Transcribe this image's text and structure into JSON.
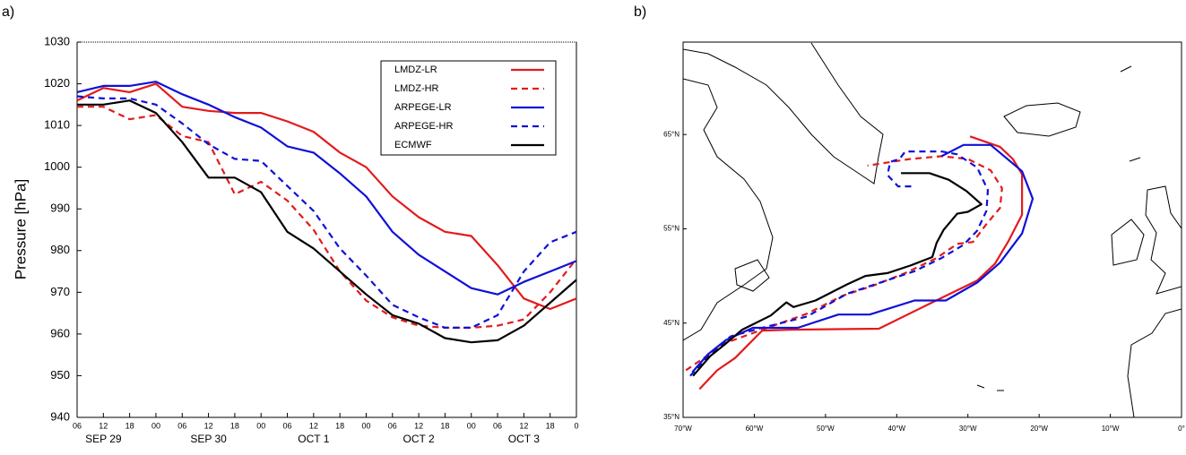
{
  "chart_data": [
    {
      "type": "line",
      "panel_label": "a)",
      "ylabel": "Pressure [hPa]",
      "x": [
        6,
        12,
        18,
        24,
        30,
        36,
        42,
        48,
        54,
        60,
        66,
        72,
        78,
        84,
        90,
        96,
        102,
        108,
        114,
        120
      ],
      "xlim": [
        6,
        120
      ],
      "xticks": [
        {
          "value": 6,
          "label": "06"
        },
        {
          "value": 12,
          "label": "12"
        },
        {
          "value": 18,
          "label": "18"
        },
        {
          "value": 24,
          "label": "00"
        },
        {
          "value": 30,
          "label": "06"
        },
        {
          "value": 36,
          "label": "12"
        },
        {
          "value": 42,
          "label": "18"
        },
        {
          "value": 48,
          "label": "00"
        },
        {
          "value": 54,
          "label": "06"
        },
        {
          "value": 60,
          "label": "12"
        },
        {
          "value": 66,
          "label": "18"
        },
        {
          "value": 72,
          "label": "00"
        },
        {
          "value": 78,
          "label": "06"
        },
        {
          "value": 84,
          "label": "12"
        },
        {
          "value": 90,
          "label": "18"
        },
        {
          "value": 96,
          "label": "00"
        },
        {
          "value": 102,
          "label": "06"
        },
        {
          "value": 108,
          "label": "12"
        },
        {
          "value": 114,
          "label": "18"
        },
        {
          "value": 120,
          "label": "0"
        }
      ],
      "xdates": [
        {
          "value": 12,
          "label": "SEP 29"
        },
        {
          "value": 36,
          "label": "SEP 30"
        },
        {
          "value": 60,
          "label": "OCT 1"
        },
        {
          "value": 84,
          "label": "OCT 2"
        },
        {
          "value": 108,
          "label": "OCT 3"
        }
      ],
      "ylim": [
        940,
        1030
      ],
      "yticks": [
        940,
        950,
        960,
        970,
        980,
        990,
        1000,
        1010,
        1020,
        1030
      ],
      "series": [
        {
          "name": "LMDZ-LR",
          "color": "#e31a1c",
          "dash": false,
          "values": [
            1016,
            1019,
            1018,
            1020,
            1014.5,
            1013.5,
            1013,
            1013,
            1011,
            1008.5,
            1003.5,
            1000,
            993,
            988,
            984.5,
            983.5,
            976.5,
            968.5,
            966,
            968.5
          ]
        },
        {
          "name": "LMDZ-HR",
          "color": "#e31a1c",
          "dash": true,
          "values": [
            1014.5,
            1014.5,
            1011.5,
            1012.5,
            1007.5,
            1006,
            993.5,
            996.5,
            992,
            985,
            975,
            968,
            964,
            962,
            961.5,
            961.5,
            962,
            963.5,
            970,
            978
          ]
        },
        {
          "name": "ARPEGE-LR",
          "color": "#1010d8",
          "dash": false,
          "values": [
            1018,
            1019.5,
            1019.5,
            1020.5,
            1017.5,
            1015,
            1012,
            1009.5,
            1005,
            1003.5,
            998.5,
            993,
            984.5,
            979,
            975,
            971,
            969.5,
            972.5,
            975,
            977.5
          ]
        },
        {
          "name": "ARPEGE-HR",
          "color": "#1010d8",
          "dash": true,
          "values": [
            1017,
            1016.5,
            1016.5,
            1015,
            1010.5,
            1005.5,
            1002,
            1001.5,
            995.5,
            989.5,
            980.5,
            974,
            967,
            964,
            961.5,
            961.5,
            964.5,
            975,
            982,
            984.5
          ]
        },
        {
          "name": "ECMWF",
          "color": "#000000",
          "dash": false,
          "values": [
            1015,
            1015,
            1016,
            1013,
            1006,
            997.5,
            997.5,
            994,
            984.5,
            980.5,
            975,
            969.5,
            964.5,
            962.5,
            959,
            958,
            958.5,
            962,
            967.5,
            973
          ]
        }
      ]
    },
    {
      "type": "map",
      "panel_label": "b)",
      "xlim": [
        -70,
        0
      ],
      "ylim": [
        35,
        74.8
      ],
      "xticks": [
        {
          "value": -70,
          "label": "70°W"
        },
        {
          "value": -60,
          "label": "60°W"
        },
        {
          "value": -50,
          "label": "50°W"
        },
        {
          "value": -40,
          "label": "40°W"
        },
        {
          "value": -30,
          "label": "30°W"
        },
        {
          "value": -20,
          "label": "20°W"
        },
        {
          "value": -10,
          "label": "10°W"
        },
        {
          "value": 0,
          "label": "0°"
        }
      ],
      "yticks": [
        {
          "value": 35,
          "label": "35°N"
        },
        {
          "value": 45,
          "label": "45°N"
        },
        {
          "value": 55,
          "label": "55°N"
        },
        {
          "value": 65,
          "label": "65°N"
        }
      ],
      "series": [
        {
          "color": "#e31a1c",
          "dash": false,
          "x": [
            -67.7,
            -65.2,
            -62.7,
            -58.9,
            -55.1,
            -42.5,
            -35.0,
            -28.7,
            -26.2,
            -24.3,
            -22.4,
            -22.4,
            -23.7,
            -25.5,
            -29.7
          ],
          "values": [
            38.0,
            40.0,
            41.3,
            44.2,
            44.3,
            44.4,
            47.2,
            49.5,
            51.3,
            53.7,
            56.5,
            60.8,
            62.4,
            63.7,
            64.8
          ]
        },
        {
          "color": "#e31a1c",
          "dash": true,
          "x": [
            -69.6,
            -66.5,
            -64.0,
            -58.9,
            -52.6,
            -47.6,
            -43.2,
            -38.8,
            -34.4,
            -31.5,
            -29.3,
            -27.4,
            -25.5,
            -25.2,
            -26.8,
            -30.0,
            -33.7,
            -38.1,
            -44.1
          ],
          "values": [
            40.0,
            41.6,
            42.9,
            44.3,
            46.0,
            47.9,
            49.0,
            50.3,
            51.9,
            53.4,
            53.6,
            55.5,
            57.2,
            59.3,
            61.2,
            62.4,
            62.7,
            62.4,
            61.7
          ]
        },
        {
          "color": "#1010d8",
          "dash": false,
          "x": [
            -68.7,
            -66.5,
            -64.0,
            -60.2,
            -53.9,
            -48.2,
            -43.8,
            -37.5,
            -33.1,
            -28.7,
            -25.5,
            -22.4,
            -20.9,
            -22.4,
            -26.8,
            -30.6,
            -33.7
          ],
          "values": [
            39.8,
            41.7,
            43.2,
            44.5,
            44.5,
            45.9,
            45.9,
            47.4,
            47.4,
            49.3,
            51.4,
            54.5,
            58.2,
            61.1,
            63.9,
            63.9,
            62.7
          ]
        },
        {
          "color": "#1010d8",
          "dash": true,
          "x": [
            -69.0,
            -66.5,
            -63.3,
            -58.9,
            -52.6,
            -47.0,
            -41.9,
            -37.5,
            -33.7,
            -30.6,
            -28.7,
            -27.4,
            -27.2,
            -28.7,
            -31.5,
            -33.7,
            -36.5,
            -38.8,
            -39.6,
            -40.9,
            -41.3,
            -39.8,
            -37.5
          ],
          "values": [
            39.4,
            41.5,
            43.6,
            44.5,
            45.7,
            48.1,
            49.4,
            50.5,
            51.9,
            53.3,
            54.8,
            56.9,
            59.1,
            61.5,
            62.9,
            63.2,
            63.2,
            63.2,
            62.4,
            62.1,
            60.7,
            59.5,
            59.5
          ]
        },
        {
          "color": "#000000",
          "dash": false,
          "x": [
            -68.6,
            -66.2,
            -64.2,
            -61.7,
            -57.7,
            -55.5,
            -54.5,
            -51.4,
            -47.0,
            -44.4,
            -41.3,
            -38.1,
            -35.0,
            -34.4,
            -33.4,
            -31.5,
            -30.0,
            -28.1,
            -30.2,
            -32.7,
            -35.4,
            -39.4
          ],
          "values": [
            39.4,
            41.5,
            42.7,
            44.3,
            45.8,
            47.2,
            46.7,
            47.4,
            49.1,
            50.0,
            50.3,
            51.1,
            52.0,
            53.5,
            54.9,
            56.6,
            56.8,
            57.6,
            59.0,
            60.2,
            60.9,
            60.9
          ]
        }
      ]
    }
  ]
}
